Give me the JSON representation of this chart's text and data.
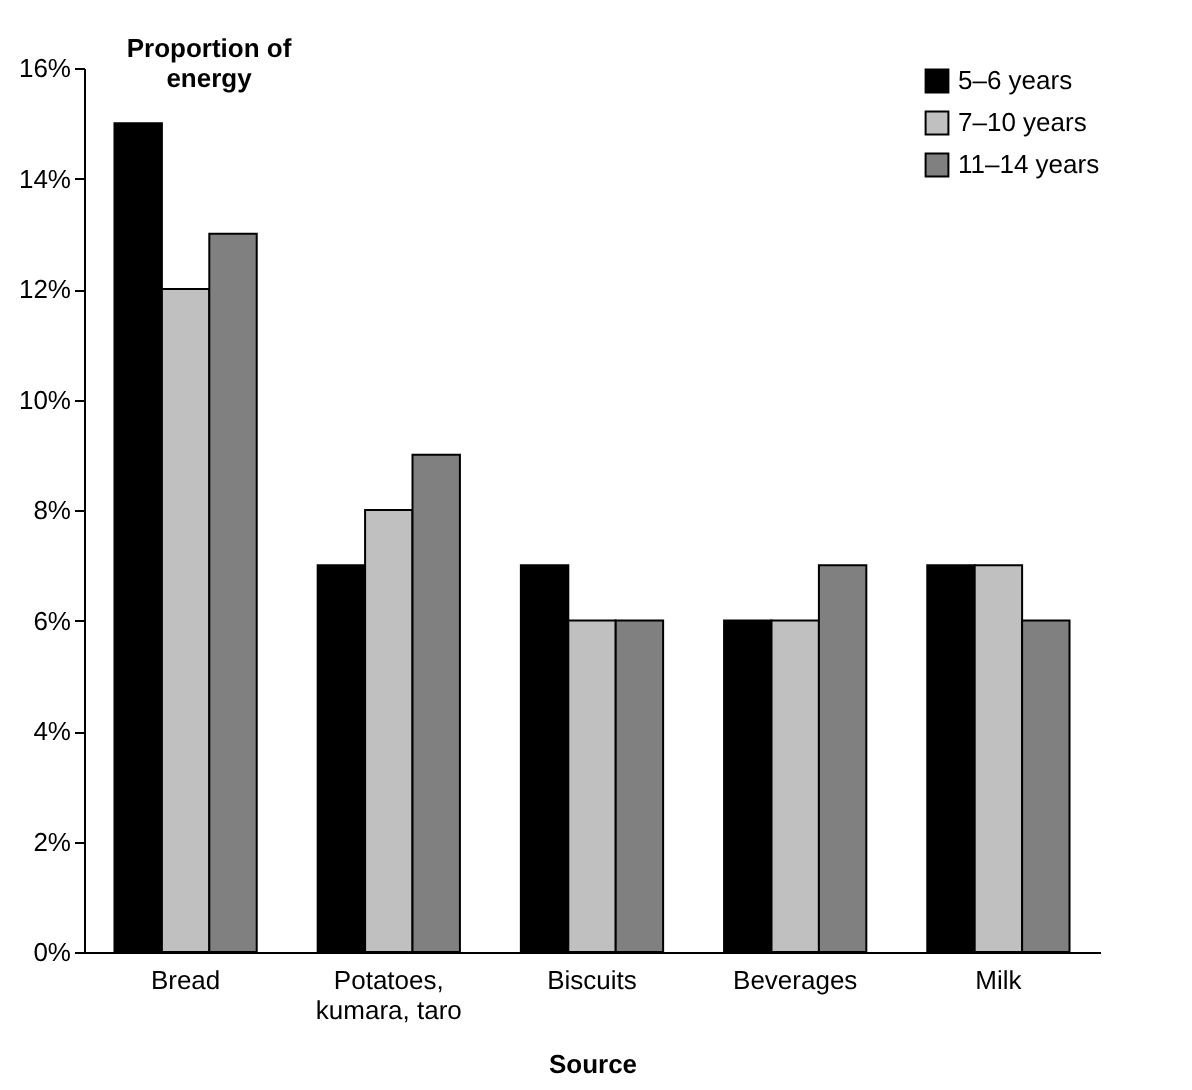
{
  "chart_data": {
    "type": "bar",
    "ylabel": "Proportion of energy",
    "xlabel": "Source",
    "categories": [
      "Bread",
      "Potatoes, kumara, taro",
      "Biscuits",
      "Beverages",
      "Milk"
    ],
    "series": [
      {
        "name": "5–6 years",
        "color": "#000000",
        "values": [
          15,
          7,
          7,
          6,
          7
        ]
      },
      {
        "name": "7–10 years",
        "color": "#c0c0c0",
        "values": [
          12,
          8,
          6,
          6,
          7
        ]
      },
      {
        "name": "11–14 years",
        "color": "#808080",
        "values": [
          13,
          9,
          6,
          7,
          6
        ]
      }
    ],
    "ylim": [
      0,
      16
    ],
    "yticks": [
      {
        "value": 0,
        "label": "0%"
      },
      {
        "value": 2,
        "label": "2%"
      },
      {
        "value": 4,
        "label": "4%"
      },
      {
        "value": 6,
        "label": "6%"
      },
      {
        "value": 8,
        "label": "8%"
      },
      {
        "value": 10,
        "label": "10%"
      },
      {
        "value": 12,
        "label": "12%"
      },
      {
        "value": 14,
        "label": "14%"
      },
      {
        "value": 16,
        "label": "16%"
      }
    ],
    "legend": "top right"
  }
}
